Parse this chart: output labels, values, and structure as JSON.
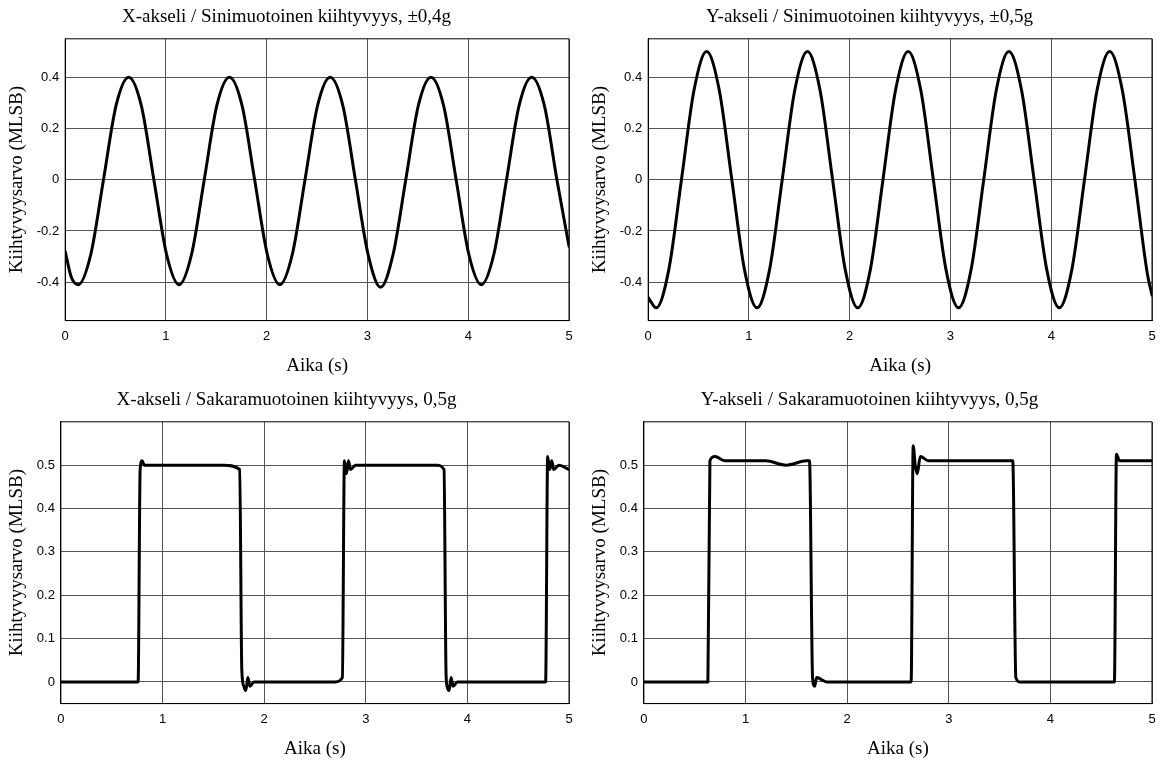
{
  "chart_data": [
    {
      "type": "line",
      "title": "X-akseli / Sinimuotoinen kiihtyvyys, ±0,4g",
      "xlabel": "Aika (s)",
      "ylabel": "Kiihtyvyysarvo (MLSB)",
      "xlim": [
        0,
        5
      ],
      "ylim": [
        -0.55,
        0.55
      ],
      "xticks": [
        0,
        1,
        2,
        3,
        4,
        5
      ],
      "yticks": [
        -0.4,
        -0.2,
        0,
        0.2,
        0.4
      ],
      "grid": true,
      "x": [
        0,
        0.06,
        0.13,
        0.255,
        0.38,
        0.505,
        0.63,
        0.755,
        0.88,
        1.005,
        1.13,
        1.255,
        1.38,
        1.505,
        1.63,
        1.755,
        1.88,
        2.005,
        2.13,
        2.255,
        2.38,
        2.505,
        2.63,
        2.755,
        2.88,
        3.005,
        3.13,
        3.255,
        3.38,
        3.505,
        3.63,
        3.755,
        3.88,
        4.005,
        4.13,
        4.255,
        4.38,
        4.505,
        4.63,
        4.755,
        4.88,
        5
      ],
      "series": [
        {
          "color": "#000000",
          "values": [
            -0.28,
            -0.38,
            -0.41,
            -0.29,
            0,
            0.29,
            0.4,
            0.29,
            0,
            -0.29,
            -0.41,
            -0.29,
            0,
            0.29,
            0.4,
            0.29,
            0,
            -0.29,
            -0.41,
            -0.29,
            0,
            0.29,
            0.4,
            0.29,
            0,
            -0.29,
            -0.42,
            -0.29,
            0,
            0.29,
            0.4,
            0.29,
            0,
            -0.29,
            -0.41,
            -0.29,
            0,
            0.29,
            0.4,
            0.29,
            0,
            -0.26
          ]
        }
      ]
    },
    {
      "type": "line",
      "title": "Y-akseli / Sinimuotoinen kiihtyvyys, ±0,5g",
      "xlabel": "Aika (s)",
      "ylabel": "Kiihtyvyysarvo (MLSB)",
      "xlim": [
        0,
        5
      ],
      "ylim": [
        -0.55,
        0.55
      ],
      "xticks": [
        0,
        1,
        2,
        3,
        4,
        5
      ],
      "yticks": [
        -0.4,
        -0.2,
        0,
        0.2,
        0.4
      ],
      "grid": true,
      "x": [
        0,
        0.08,
        0.205,
        0.33,
        0.455,
        0.58,
        0.705,
        0.83,
        0.955,
        1.08,
        1.205,
        1.33,
        1.455,
        1.58,
        1.705,
        1.83,
        1.955,
        2.08,
        2.205,
        2.33,
        2.455,
        2.58,
        2.705,
        2.83,
        2.955,
        3.08,
        3.205,
        3.33,
        3.455,
        3.58,
        3.705,
        3.83,
        3.955,
        4.08,
        4.205,
        4.33,
        4.455,
        4.58,
        4.705,
        4.83,
        4.955,
        5
      ],
      "series": [
        {
          "color": "#000000",
          "values": [
            -0.46,
            -0.5,
            -0.35,
            0,
            0.35,
            0.5,
            0.35,
            0,
            -0.35,
            -0.5,
            -0.35,
            0,
            0.35,
            0.5,
            0.35,
            0,
            -0.35,
            -0.5,
            -0.35,
            0,
            0.35,
            0.5,
            0.35,
            0,
            -0.35,
            -0.5,
            -0.35,
            0,
            0.35,
            0.5,
            0.35,
            0,
            -0.35,
            -0.5,
            -0.35,
            0,
            0.35,
            0.5,
            0.35,
            0,
            -0.37,
            -0.45
          ]
        }
      ]
    },
    {
      "type": "line",
      "title": "X-akseli / Sakaramuotoinen kiihtyvyys, 0,5g",
      "xlabel": "Aika (s)",
      "ylabel": "Kiihtyvyysarvo (MLSB)",
      "xlim": [
        0,
        5
      ],
      "ylim": [
        -0.05,
        0.6
      ],
      "xticks": [
        0,
        1,
        2,
        3,
        4,
        5
      ],
      "yticks": [
        0,
        0.1,
        0.2,
        0.3,
        0.4,
        0.5
      ],
      "grid": true,
      "x": [
        0,
        0.2,
        0.4,
        0.6,
        0.76,
        0.78,
        0.8,
        0.82,
        1.0,
        1.2,
        1.4,
        1.6,
        1.76,
        1.78,
        1.8,
        1.82,
        1.84,
        1.86,
        1.9,
        2.1,
        2.3,
        2.5,
        2.7,
        2.77,
        2.79,
        2.81,
        2.83,
        2.85,
        2.9,
        3.1,
        3.3,
        3.5,
        3.7,
        3.77,
        3.79,
        3.8,
        3.82,
        3.84,
        3.86,
        3.9,
        4.1,
        4.3,
        4.5,
        4.7,
        4.77,
        4.79,
        4.81,
        4.83,
        4.85,
        4.9,
        5
      ],
      "series": [
        {
          "color": "#000000",
          "values": [
            0,
            0,
            0,
            0,
            0,
            0.49,
            0.51,
            0.5,
            0.5,
            0.5,
            0.5,
            0.5,
            0.49,
            0.03,
            -0.01,
            -0.02,
            0.01,
            -0.01,
            0,
            0,
            0,
            0,
            0,
            0.01,
            0.51,
            0.48,
            0.51,
            0.49,
            0.5,
            0.5,
            0.5,
            0.5,
            0.5,
            0.49,
            0.02,
            -0.01,
            -0.02,
            0.01,
            -0.01,
            0,
            0,
            0,
            0,
            0,
            0,
            0.52,
            0.49,
            0.51,
            0.49,
            0.5,
            0.49
          ]
        }
      ]
    },
    {
      "type": "line",
      "title": "Y-akseli / Sakaramuotoinen kiihtyvyys, 0,5g",
      "xlabel": "Aika (s)",
      "ylabel": "Kiihtyvyysarvo (MLSB)",
      "xlim": [
        0,
        5
      ],
      "ylim": [
        -0.05,
        0.6
      ],
      "xticks": [
        0,
        1,
        2,
        3,
        4,
        5
      ],
      "yticks": [
        0,
        0.1,
        0.2,
        0.3,
        0.4,
        0.5
      ],
      "grid": true,
      "x": [
        0,
        0.2,
        0.4,
        0.6,
        0.63,
        0.65,
        0.7,
        0.8,
        1.0,
        1.2,
        1.4,
        1.6,
        1.63,
        1.66,
        1.68,
        1.7,
        1.8,
        2.0,
        2.2,
        2.4,
        2.6,
        2.63,
        2.65,
        2.67,
        2.69,
        2.72,
        2.8,
        3.0,
        3.2,
        3.4,
        3.6,
        3.63,
        3.66,
        3.7,
        3.8,
        4.0,
        4.2,
        4.4,
        4.6,
        4.63,
        4.65,
        4.68,
        4.8,
        5
      ],
      "series": [
        {
          "color": "#000000",
          "values": [
            0,
            0,
            0,
            0,
            0,
            0.51,
            0.52,
            0.51,
            0.51,
            0.51,
            0.5,
            0.51,
            0.51,
            0.01,
            -0.01,
            0.01,
            0,
            0,
            0,
            0,
            0,
            0,
            0.545,
            0.5,
            0.48,
            0.52,
            0.51,
            0.51,
            0.51,
            0.51,
            0.51,
            0.51,
            0.01,
            0,
            0,
            0,
            0,
            0,
            0,
            0,
            0.525,
            0.51,
            0.51,
            0.51
          ]
        }
      ]
    }
  ]
}
